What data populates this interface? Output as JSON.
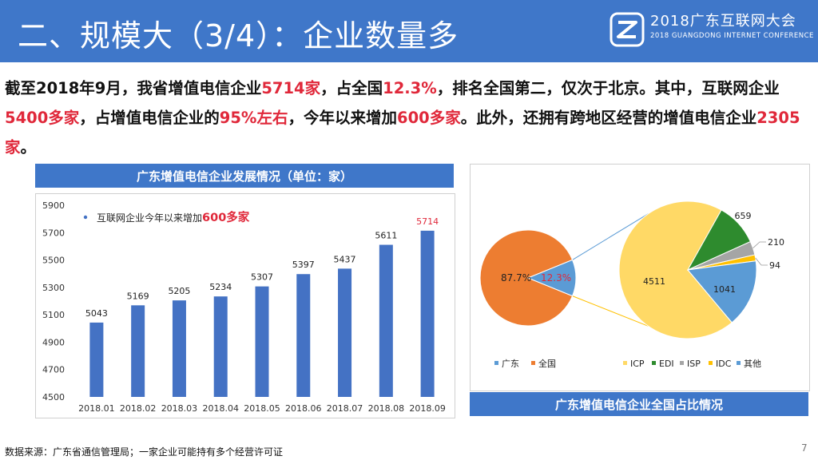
{
  "header": {
    "title": "二、规模大（3/4）：企业数量多",
    "logo_main": "2018广东互联网大会",
    "logo_sub": "2018 GUANGDONG INTERNET CONFERENCE"
  },
  "intro": {
    "segments": [
      {
        "text": "截至2018年9月，我省增值电信企业",
        "hl": false
      },
      {
        "text": "5714家",
        "hl": true
      },
      {
        "text": "，占全国",
        "hl": false
      },
      {
        "text": "12.3%",
        "hl": true
      },
      {
        "text": "，排名全国第二，仅次于北京。其中，互联网企业",
        "hl": false
      },
      {
        "text": "5400多家",
        "hl": true
      },
      {
        "text": "，占增值电信企业的",
        "hl": false
      },
      {
        "text": "95%左右",
        "hl": true
      },
      {
        "text": "，今年以来增加",
        "hl": false
      },
      {
        "text": "600多家",
        "hl": true
      },
      {
        "text": "。此外，还拥有跨地区经营的增值电信企业",
        "hl": false
      },
      {
        "text": "2305家",
        "hl": true
      },
      {
        "text": "。",
        "hl": false
      }
    ]
  },
  "bar_panel": {
    "header": "广东增值电信企业发展情况（单位：家）",
    "annotation_prefix": "互联网企业今年以来增加",
    "annotation_highlight": "600多家"
  },
  "pie_panel": {
    "footer": "广东增值电信企业全国占比情况"
  },
  "colors": {
    "header_blue": "#3f77c9",
    "bar_blue": "#4472c4",
    "highlight_red": "#e0283a",
    "orange": "#ed7d31",
    "pie_blue": "#5b9bd5",
    "gold": "#ffd966",
    "green": "#2e8b2e",
    "gray": "#a5a5a5",
    "yellow": "#ffc000"
  },
  "chart_data": [
    {
      "type": "bar",
      "categories": [
        "2018.01",
        "2018.02",
        "2018.03",
        "2018.04",
        "2018.05",
        "2018.06",
        "2018.07",
        "2018.08",
        "2018.09"
      ],
      "values": [
        5043,
        5169,
        5205,
        5234,
        5307,
        5397,
        5437,
        5611,
        5714
      ],
      "ylim": [
        4500,
        5900
      ],
      "yticks": [
        4500,
        4700,
        4900,
        5100,
        5300,
        5500,
        5700,
        5900
      ],
      "highlight_last_label": true
    },
    {
      "type": "pie",
      "labels": [
        "广东",
        "全国"
      ],
      "values": [
        12.3,
        87.7
      ],
      "data_labels": [
        "12.3%",
        "87.7%"
      ]
    },
    {
      "type": "pie",
      "labels": [
        "ICP",
        "EDI",
        "ISP",
        "IDC",
        "其他"
      ],
      "values": [
        4511,
        659,
        210,
        94,
        1041
      ],
      "data_labels": [
        "4511",
        "659",
        "210",
        "94",
        "1041"
      ]
    }
  ]
}
